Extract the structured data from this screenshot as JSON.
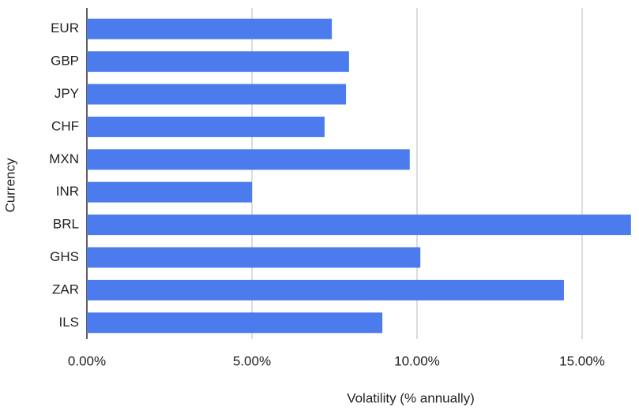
{
  "chart_data": {
    "type": "bar",
    "orientation": "horizontal",
    "x_label": "Volatility (% annually)",
    "y_label": "Currency",
    "categories": [
      "EUR",
      "GBP",
      "JPY",
      "CHF",
      "MXN",
      "INR",
      "BRL",
      "GHS",
      "ZAR",
      "ILS"
    ],
    "values": [
      7.42,
      7.94,
      7.85,
      7.2,
      9.78,
      5.0,
      16.48,
      10.1,
      14.45,
      8.95
    ],
    "color": "#4b7bec",
    "xlim": [
      0,
      16.7
    ],
    "xticks": [
      {
        "value": 0,
        "label": "0.00%"
      },
      {
        "value": 5,
        "label": "5.00%"
      },
      {
        "value": 10,
        "label": "10.00%"
      },
      {
        "value": 15,
        "label": "15.00%"
      }
    ],
    "grid": true
  }
}
